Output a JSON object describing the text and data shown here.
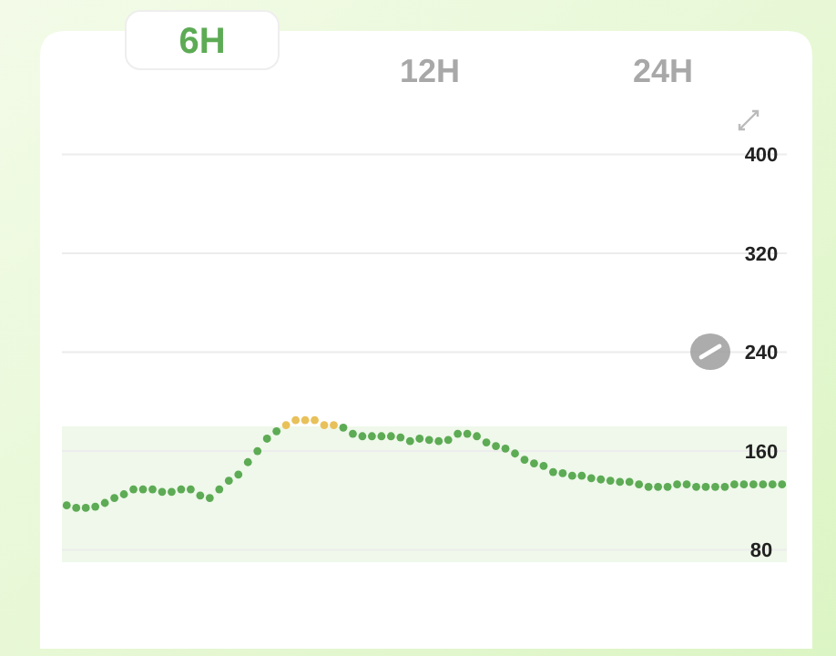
{
  "chart_data": {
    "type": "scatter",
    "annotations": [
      "6H",
      "12H",
      "24H"
    ],
    "categories": [
      null,
      null,
      null,
      null,
      null,
      null,
      null,
      null,
      null,
      null,
      null,
      null,
      null,
      null,
      null,
      null,
      null,
      null,
      null,
      null,
      null,
      null,
      null,
      null,
      null,
      null,
      null,
      null,
      null,
      null,
      null,
      null,
      null,
      null,
      null,
      null,
      null,
      null,
      null,
      null,
      null,
      null,
      null,
      null,
      null,
      null,
      null,
      null,
      null,
      null,
      null,
      null,
      null,
      null,
      null,
      null,
      null,
      null,
      null,
      null,
      null,
      null,
      null,
      null,
      null,
      null,
      null,
      null,
      null,
      null,
      null,
      null,
      null,
      null,
      null,
      null
    ],
    "values": [
      116,
      114,
      114,
      115,
      118,
      122,
      125,
      129,
      129,
      129,
      127,
      127,
      129,
      129,
      124,
      122,
      129,
      136,
      141,
      151,
      160,
      170,
      176,
      181,
      185,
      185,
      185,
      181,
      181,
      179,
      174,
      172,
      172,
      172,
      172,
      171,
      168,
      170,
      169,
      168,
      169,
      174,
      174,
      172,
      167,
      164,
      162,
      158,
      153,
      150,
      148,
      143,
      142,
      140,
      140,
      138,
      137,
      136,
      135,
      135,
      133,
      131,
      131,
      131,
      133,
      133,
      131,
      131,
      131,
      131,
      133,
      133,
      133,
      133,
      133,
      133
    ],
    "colors": [
      "#5dab55",
      "#5dab55",
      "#5dab55",
      "#5dab55",
      "#5dab55",
      "#5dab55",
      "#5dab55",
      "#5dab55",
      "#5dab55",
      "#5dab55",
      "#5dab55",
      "#5dab55",
      "#5dab55",
      "#5dab55",
      "#5dab55",
      "#5dab55",
      "#5dab55",
      "#5dab55",
      "#5dab55",
      "#5dab55",
      "#5dab55",
      "#5dab55",
      "#5dab55",
      "#e9c15a",
      "#e9c15a",
      "#e9c15a",
      "#e9c15a",
      "#e9c15a",
      "#e9c15a",
      "#5dab55",
      "#5dab55",
      "#5dab55",
      "#5dab55",
      "#5dab55",
      "#5dab55",
      "#5dab55",
      "#5dab55",
      "#5dab55",
      "#5dab55",
      "#5dab55",
      "#5dab55",
      "#5dab55",
      "#5dab55",
      "#5dab55",
      "#5dab55",
      "#5dab55",
      "#5dab55",
      "#5dab55",
      "#5dab55",
      "#5dab55",
      "#5dab55",
      "#5dab55",
      "#5dab55",
      "#5dab55",
      "#5dab55",
      "#5dab55",
      "#5dab55",
      "#5dab55",
      "#5dab55",
      "#5dab55",
      "#5dab55",
      "#5dab55",
      "#5dab55",
      "#5dab55",
      "#5dab55",
      "#5dab55",
      "#5dab55",
      "#5dab55",
      "#5dab55",
      "#5dab55",
      "#5dab55",
      "#5dab55",
      "#5dab55",
      "#5dab55",
      "#5dab55",
      "#5dab55"
    ],
    "ylim": [
      0,
      500
    ],
    "yticks": [
      80,
      160,
      240,
      320,
      400
    ],
    "grid": "y",
    "bands": [
      {
        "axis": "y",
        "from": 70,
        "to": 180,
        "color": "#eff8ea"
      }
    ]
  }
}
